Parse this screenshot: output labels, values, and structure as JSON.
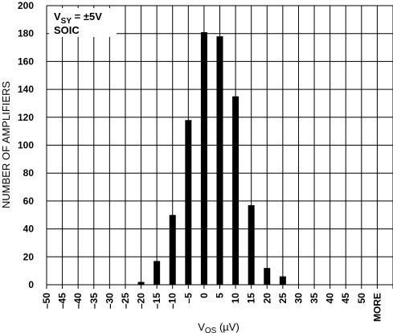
{
  "chart_data": {
    "type": "bar",
    "categories": [
      "-50",
      "-45",
      "-40",
      "-35",
      "-30",
      "-25",
      "-20",
      "-15",
      "-10",
      "-5",
      "0",
      "5",
      "10",
      "15",
      "20",
      "25",
      "30",
      "35",
      "40",
      "45",
      "50",
      "MORE"
    ],
    "category_labels": [
      "–50",
      "–45",
      "–40",
      "–35",
      "–30",
      "–25",
      "–20",
      "–15",
      "–10",
      "–5",
      "0",
      "5",
      "10",
      "15",
      "20",
      "25",
      "30",
      "35",
      "40",
      "45",
      "50",
      "MORE"
    ],
    "values": [
      0,
      0,
      0,
      0,
      0,
      0,
      2,
      17,
      50,
      118,
      181,
      178,
      135,
      57,
      12,
      6,
      0,
      0,
      0,
      0,
      0,
      0
    ],
    "ylabel": "NUMBER OF AMPLIFIERS",
    "xlabel": {
      "main": "V",
      "sub": "OS",
      "unit": " (µV)"
    },
    "ylim": [
      0,
      200
    ],
    "yticks": [
      0,
      20,
      40,
      60,
      80,
      100,
      120,
      140,
      160,
      180,
      200
    ],
    "grid": true,
    "bar_color": "#000000",
    "annotation": {
      "line1": {
        "main": "V",
        "sub": "SY",
        "rest": " = ±5V"
      },
      "line2": "SOIC"
    }
  }
}
